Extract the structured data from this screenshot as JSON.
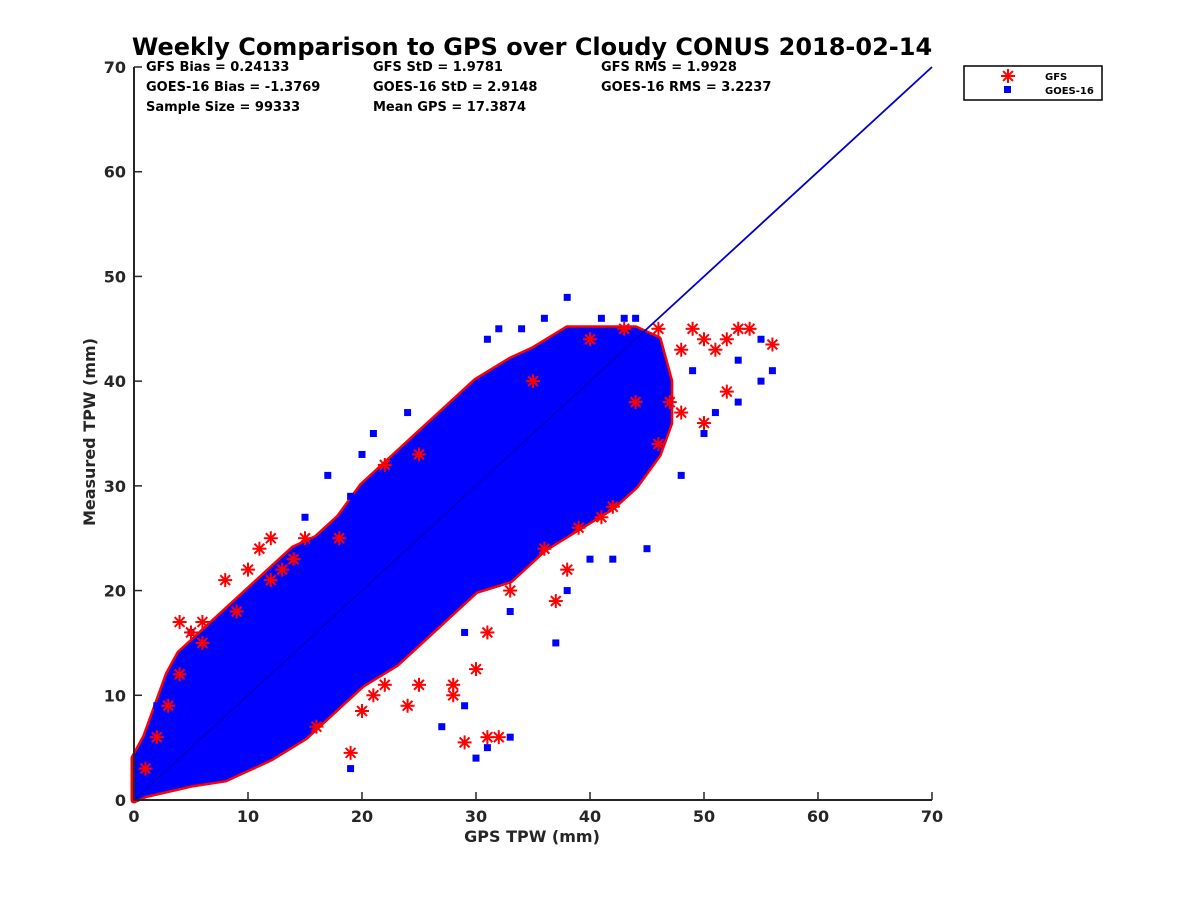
{
  "chart_data": {
    "type": "scatter",
    "title": "Weekly Comparison to GPS over Cloudy CONUS 2018-02-14",
    "xlabel": "GPS TPW (mm)",
    "ylabel": "Measured TPW (mm)",
    "xlim": [
      0,
      70
    ],
    "ylim": [
      0,
      70
    ],
    "xticks": [
      "0",
      "10",
      "20",
      "30",
      "40",
      "50",
      "60",
      "70"
    ],
    "yticks": [
      "0",
      "10",
      "20",
      "30",
      "40",
      "50",
      "60",
      "70"
    ],
    "grid": false,
    "legend_position": "top-right, outside plot",
    "stats": [
      [
        "GFS Bias = 0.24133",
        "GFS StD = 1.9781",
        "GFS RMS = 1.9928"
      ],
      [
        "GOES-16 Bias = -1.3769",
        "GOES-16 StD = 2.9148",
        "GOES-16 RMS = 3.2237"
      ],
      [
        "Sample Size = 99333",
        "Mean GPS = 17.3874"
      ]
    ],
    "reference_line": {
      "x": [
        0,
        70
      ],
      "y": [
        0,
        70
      ],
      "color": "#0000cc"
    },
    "series": [
      {
        "name": "GFS",
        "marker": "asterisk",
        "color": "#ff0000",
        "points": [
          [
            1,
            3
          ],
          [
            2,
            6
          ],
          [
            3,
            9
          ],
          [
            4,
            12
          ],
          [
            5,
            16
          ],
          [
            6,
            15
          ],
          [
            8,
            21
          ],
          [
            9,
            18
          ],
          [
            10,
            22
          ],
          [
            11,
            24
          ],
          [
            12,
            25
          ],
          [
            13,
            22
          ],
          [
            14,
            23
          ],
          [
            15,
            25
          ],
          [
            12,
            21
          ],
          [
            6,
            17
          ],
          [
            4,
            17
          ],
          [
            16,
            7
          ],
          [
            19,
            4.5
          ],
          [
            20,
            8.5
          ],
          [
            21,
            10
          ],
          [
            22,
            11
          ],
          [
            24,
            9
          ],
          [
            25,
            11
          ],
          [
            28,
            11
          ],
          [
            28,
            10
          ],
          [
            29,
            5.5
          ],
          [
            30,
            12.5
          ],
          [
            31,
            6
          ],
          [
            32,
            6
          ],
          [
            31,
            16
          ],
          [
            33,
            20
          ],
          [
            36,
            24
          ],
          [
            37,
            19
          ],
          [
            38,
            22
          ],
          [
            39,
            26
          ],
          [
            41,
            27
          ],
          [
            42,
            28
          ],
          [
            44,
            38
          ],
          [
            46,
            34
          ],
          [
            47,
            38
          ],
          [
            48,
            37
          ],
          [
            48,
            43
          ],
          [
            49,
            45
          ],
          [
            50,
            44
          ],
          [
            51,
            43
          ],
          [
            52,
            44
          ],
          [
            53,
            45
          ],
          [
            54,
            45
          ],
          [
            56,
            43.5
          ],
          [
            50,
            36
          ],
          [
            52,
            39
          ],
          [
            46,
            45
          ],
          [
            25,
            33
          ],
          [
            22,
            32
          ],
          [
            18,
            25
          ],
          [
            35,
            40
          ],
          [
            40,
            44
          ],
          [
            43,
            45
          ]
        ]
      },
      {
        "name": "GOES-16",
        "marker": "square",
        "color": "#0000ff",
        "points": [
          [
            19,
            3
          ],
          [
            27,
            7
          ],
          [
            30,
            4
          ],
          [
            31,
            5
          ],
          [
            33,
            6
          ],
          [
            29,
            9
          ],
          [
            37,
            15
          ],
          [
            38,
            20
          ],
          [
            40,
            23
          ],
          [
            42,
            23
          ],
          [
            45,
            24
          ],
          [
            48,
            31
          ],
          [
            50,
            35
          ],
          [
            51,
            37
          ],
          [
            53,
            38
          ],
          [
            55,
            40
          ],
          [
            56,
            41
          ],
          [
            55,
            44
          ],
          [
            53,
            42
          ],
          [
            44,
            46
          ],
          [
            38,
            48
          ],
          [
            36,
            46
          ],
          [
            34,
            45
          ],
          [
            32,
            45
          ],
          [
            31,
            44
          ],
          [
            24,
            37
          ],
          [
            21,
            35
          ],
          [
            20,
            33
          ],
          [
            17,
            31
          ],
          [
            19,
            29
          ],
          [
            26,
            18
          ],
          [
            25,
            21
          ],
          [
            29,
            16
          ],
          [
            33,
            18
          ],
          [
            47,
            38
          ],
          [
            49,
            41
          ],
          [
            45,
            42
          ],
          [
            43,
            46
          ],
          [
            41,
            46
          ],
          [
            15,
            27
          ],
          [
            2,
            9
          ],
          [
            5,
            16
          ]
        ]
      }
    ],
    "main_cloud_polygon": [
      [
        0,
        0
      ],
      [
        1,
        0.5
      ],
      [
        5,
        1.5
      ],
      [
        8,
        2
      ],
      [
        10,
        3
      ],
      [
        12,
        4
      ],
      [
        15,
        6
      ],
      [
        17,
        8
      ],
      [
        20,
        11
      ],
      [
        23,
        13
      ],
      [
        26,
        16
      ],
      [
        28,
        18
      ],
      [
        30,
        20
      ],
      [
        33,
        21
      ],
      [
        36,
        24
      ],
      [
        39,
        26
      ],
      [
        42,
        28
      ],
      [
        44,
        30
      ],
      [
        46,
        33
      ],
      [
        47,
        36
      ],
      [
        47,
        40
      ],
      [
        46,
        44
      ],
      [
        44,
        45
      ],
      [
        41,
        45
      ],
      [
        38,
        45
      ],
      [
        35,
        43
      ],
      [
        33,
        42
      ],
      [
        30,
        40
      ],
      [
        27,
        37
      ],
      [
        25,
        35
      ],
      [
        22,
        32
      ],
      [
        20,
        30
      ],
      [
        18,
        27
      ],
      [
        16,
        25
      ],
      [
        14,
        24
      ],
      [
        12,
        22
      ],
      [
        10,
        20
      ],
      [
        8,
        18
      ],
      [
        6,
        16
      ],
      [
        4,
        14
      ],
      [
        3,
        12
      ],
      [
        2,
        9
      ],
      [
        1,
        6
      ],
      [
        0,
        4
      ]
    ]
  }
}
